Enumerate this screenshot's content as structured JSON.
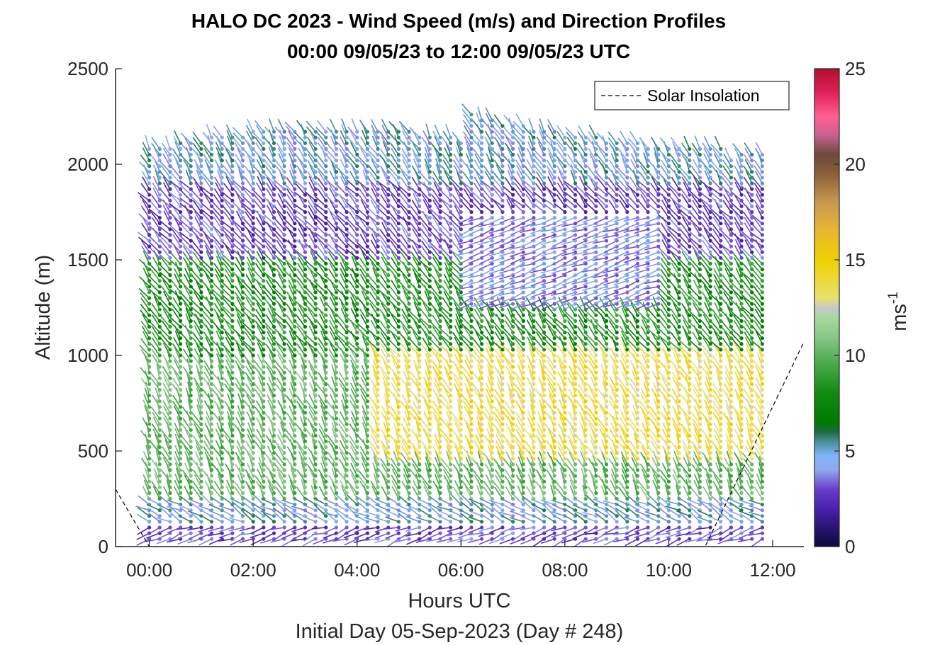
{
  "chart_data": {
    "type": "scatter",
    "title": "HALO DC 2023 - Wind Speed (m/s) and Direction Profiles",
    "subtitle": "00:00 09/05/23 to 12:00 09/05/23  UTC",
    "xlabel": "Hours UTC",
    "ylabel": "Altitude (m)",
    "footnote": "Initial Day 05-Sep-2023 (Day # 248)",
    "xlim": [
      -0.65,
      12.6
    ],
    "ylim": [
      0,
      2500
    ],
    "xticks": [
      0,
      2,
      4,
      6,
      8,
      10,
      12
    ],
    "xtick_labels": [
      "00:00",
      "02:00",
      "04:00",
      "06:00",
      "08:00",
      "10:00",
      "12:00"
    ],
    "yticks": [
      0,
      500,
      1000,
      1500,
      2000,
      2500
    ],
    "ytick_labels": [
      "0",
      "500",
      "1000",
      "1500",
      "2000",
      "2500"
    ],
    "profile_interval_hours": 0.2,
    "profile_start_hour": 0,
    "profile_count": 60,
    "colorbar": {
      "label": "ms",
      "label_exponent": "-1",
      "range": [
        0,
        25
      ],
      "ticks": [
        0,
        5,
        10,
        15,
        20,
        25
      ],
      "tick_labels": [
        "0",
        "5",
        "10",
        "15",
        "20",
        "25"
      ]
    },
    "legend": {
      "entries": [
        "Solar Insolation"
      ],
      "position": "top-right"
    },
    "solar_insolation": {
      "style": "dashed",
      "x": [
        -0.65,
        0.0,
        0.1,
        10.7,
        12.6
      ],
      "y": [
        300,
        0,
        0,
        0,
        1070
      ]
    },
    "speed_layers": [
      {
        "alt_from": 0,
        "alt_to": 120,
        "speed": 3,
        "dir_deg": 250
      },
      {
        "alt_from": 120,
        "alt_to": 250,
        "speed": 5,
        "dir_deg": 300
      },
      {
        "alt_from": 250,
        "alt_to": 1000,
        "speed": 10,
        "dir_deg": 335
      },
      {
        "alt_from": 1000,
        "alt_to": 1500,
        "speed": 8,
        "dir_deg": 325
      },
      {
        "alt_from": 1500,
        "alt_to": 1900,
        "speed": 3,
        "dir_deg": 320
      },
      {
        "alt_from": 1900,
        "alt_to": 2300,
        "speed": 5,
        "dir_deg": 330
      }
    ],
    "jet": {
      "hour_from": 4.4,
      "hour_to": 11.8,
      "alt_from": 450,
      "alt_to": 1000,
      "speed": 14
    }
  }
}
